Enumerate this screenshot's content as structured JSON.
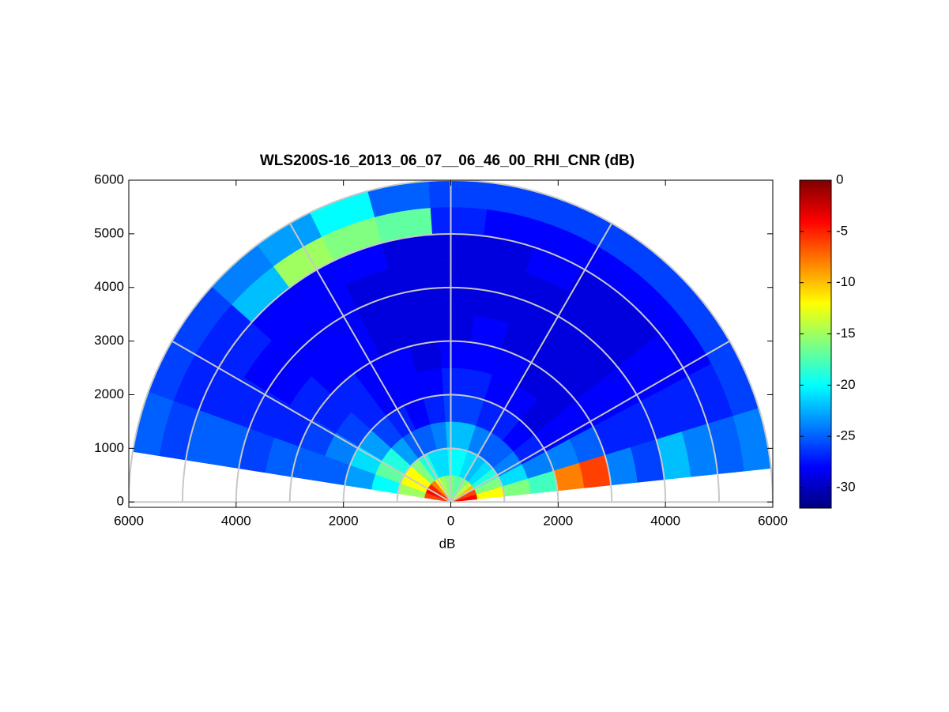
{
  "chart_data": {
    "type": "polar-heatmap",
    "title": "WLS200S-16_2013_06_07__06_46_00_RHI_CNR (dB)",
    "xlabel": "dB",
    "xlim": [
      -6000,
      6000
    ],
    "ylim": [
      -100,
      6000
    ],
    "xticks": [
      {
        "value": -6000,
        "label": "6000"
      },
      {
        "value": -4000,
        "label": "4000"
      },
      {
        "value": -2000,
        "label": "2000"
      },
      0,
      2000,
      4000,
      6000
    ],
    "yticks": [
      0,
      1000,
      2000,
      3000,
      4000,
      5000,
      6000
    ],
    "rgrid": [
      1000,
      2000,
      3000,
      4000,
      5000,
      6000
    ],
    "thetagrid": [
      0,
      30,
      60,
      90,
      120,
      150,
      180
    ],
    "colormap": "jet",
    "clim": [
      -32,
      0
    ],
    "cticks": [
      0,
      -5,
      -10,
      -15,
      -20,
      -25,
      -30
    ],
    "range_edges": [
      0,
      500,
      1000,
      1500,
      2000,
      2500,
      3000,
      3500,
      4000,
      4500,
      5000,
      5500,
      6000
    ],
    "angle_edges": [
      6,
      17,
      28,
      39,
      50,
      61,
      72,
      83,
      94,
      105,
      116,
      127,
      138,
      149,
      160,
      171
    ],
    "values": [
      [
        -4,
        -6,
        -10,
        -14,
        -16,
        -17,
        -17,
        -16,
        -16,
        -15,
        -12,
        -8,
        -5,
        -4,
        -6
      ],
      [
        -12,
        -16,
        -19,
        -21,
        -22,
        -21,
        -20,
        -20,
        -21,
        -21,
        -19,
        -16,
        -12,
        -12,
        -15
      ],
      [
        -16,
        -21,
        -24,
        -25,
        -25,
        -24,
        -22,
        -22,
        -24,
        -25,
        -25,
        -23,
        -19,
        -17,
        -20
      ],
      [
        -18,
        -24,
        -27,
        -28,
        -27,
        -27,
        -26,
        -26,
        -27,
        -28,
        -27,
        -26,
        -23,
        -21,
        -23
      ],
      [
        -8,
        -24,
        -28,
        -29,
        -28,
        -28,
        -27,
        -27,
        -28,
        -28,
        -28,
        -27,
        -26,
        -24,
        -25
      ],
      [
        -6,
        -25,
        -28,
        -29,
        -29,
        -28,
        -28,
        -28,
        -29,
        -28,
        -28,
        -27,
        -27,
        -26,
        -25
      ],
      [
        -24,
        -27,
        -28,
        -29,
        -29,
        -29,
        -28,
        -29,
        -29,
        -29,
        -28,
        -28,
        -27,
        -27,
        -25
      ],
      [
        -26,
        -27,
        -28,
        -29,
        -29,
        -29,
        -29,
        -29,
        -29,
        -29,
        -28,
        -28,
        -28,
        -27,
        -26
      ],
      [
        -22,
        -27,
        -28,
        -29,
        -29,
        -29,
        -29,
        -29,
        -29,
        -29,
        -28,
        -28,
        -28,
        -27,
        -25
      ],
      [
        -24,
        -27,
        -28,
        -29,
        -29,
        -28,
        -29,
        -29,
        -29,
        -28,
        -28,
        -28,
        -27,
        -27,
        -25
      ],
      [
        -25,
        -27,
        -28,
        -28,
        -28,
        -28,
        -28,
        -27,
        -17,
        -16,
        -15,
        -22,
        -27,
        -27,
        -26
      ],
      [
        -24,
        -26,
        -26,
        -26,
        -26,
        -26,
        -26,
        -26,
        -25,
        -20,
        -23,
        -24,
        -26,
        -26,
        -25
      ]
    ]
  }
}
